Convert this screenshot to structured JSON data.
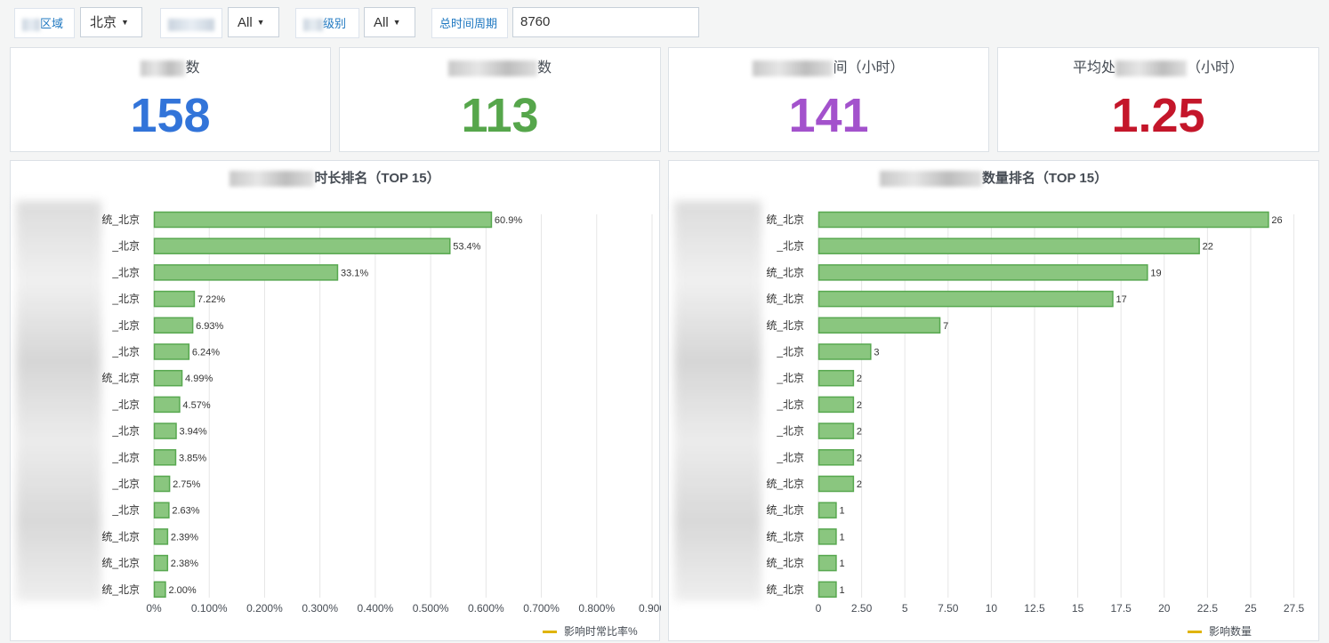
{
  "filters": {
    "region_label": "区域",
    "region_value": "北京",
    "system_value": "All",
    "level_label": "级别",
    "level_value": "All",
    "period_label": "总时间周期",
    "period_value": "8760"
  },
  "stats": [
    {
      "title": "数",
      "value": "158",
      "color": "#3274d9"
    },
    {
      "title": "数",
      "value": "113",
      "color": "#56a64b"
    },
    {
      "title": "间（小时）",
      "value": "141",
      "color": "#a352cc"
    },
    {
      "title_prefix": "平均处",
      "title": "（小时）",
      "value": "1.25",
      "color": "#c4162a"
    }
  ],
  "colors": {
    "bar_fill": "#8ac67f",
    "bar_stroke": "#58a850",
    "legend": "#e0b400",
    "grid": "#e6e6e6"
  },
  "chart_data": [
    {
      "type": "bar",
      "orientation": "horizontal",
      "title": "时长排名（TOP 15）",
      "categories": [
        "统_北京",
        "_北京",
        "_北京",
        "_北京",
        "_北京",
        "_北京",
        "统_北京",
        "_北京",
        "_北京",
        "_北京",
        "_北京",
        "_北京",
        "统_北京",
        "统_北京",
        "统_北京"
      ],
      "values": [
        0.609,
        0.534,
        0.331,
        0.0722,
        0.0693,
        0.0624,
        0.0499,
        0.0457,
        0.0394,
        0.0385,
        0.0275,
        0.0263,
        0.0239,
        0.0238,
        0.02
      ],
      "value_labels": [
        "60.9%",
        "53.4%",
        "33.1%",
        "7.22%",
        "6.93%",
        "6.24%",
        "4.99%",
        "4.57%",
        "3.94%",
        "3.85%",
        "2.75%",
        "2.63%",
        "2.39%",
        "2.38%",
        "2.00%"
      ],
      "x_ticks": [
        "0%",
        "0.100%",
        "0.200%",
        "0.300%",
        "0.400%",
        "0.500%",
        "0.600%",
        "0.700%",
        "0.800%",
        "0.900"
      ],
      "xlim": [
        0,
        0.9
      ],
      "legend": "影响时常比率%",
      "grid": true
    },
    {
      "type": "bar",
      "orientation": "horizontal",
      "title": "数量排名（TOP 15）",
      "categories": [
        "统_北京",
        "_北京",
        "统_北京",
        "统_北京",
        "统_北京",
        "_北京",
        "_北京",
        "_北京",
        "_北京",
        "_北京",
        "统_北京",
        "统_北京",
        "统_北京",
        "统_北京",
        "统_北京"
      ],
      "values": [
        26,
        22,
        19,
        17,
        7,
        3,
        2,
        2,
        2,
        2,
        2,
        1,
        1,
        1,
        1
      ],
      "value_labels": [
        "26",
        "22",
        "19",
        "17",
        "7",
        "3",
        "2",
        "2",
        "2",
        "2",
        "2",
        "1",
        "1",
        "1",
        "1"
      ],
      "x_ticks": [
        "0",
        "2.50",
        "5",
        "7.50",
        "10",
        "12.5",
        "15",
        "17.5",
        "20",
        "22.5",
        "25",
        "27.5"
      ],
      "xlim": [
        0,
        28.5
      ],
      "legend": "影响数量",
      "grid": true
    }
  ]
}
